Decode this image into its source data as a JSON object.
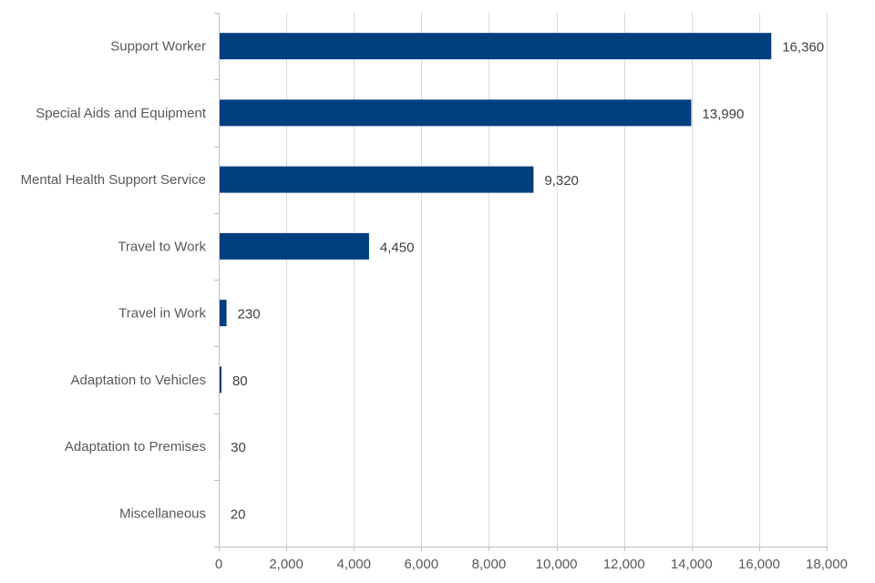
{
  "chart_data": {
    "type": "bar",
    "orientation": "horizontal",
    "title": "",
    "xlabel": "",
    "ylabel": "",
    "categories": [
      "Support Worker",
      "Special Aids and Equipment",
      "Mental Health Support Service",
      "Travel to Work",
      "Travel in Work",
      "Adaptation to Vehicles",
      "Adaptation to Premises",
      "Miscellaneous"
    ],
    "values": [
      16360,
      13990,
      9320,
      4450,
      230,
      80,
      30,
      20
    ],
    "data_labels": [
      "16,360",
      "13,990",
      "9,320",
      "4,450",
      "230",
      "80",
      "30",
      "20"
    ],
    "xlim": [
      0,
      18000
    ],
    "x_ticks": [
      0,
      2000,
      4000,
      6000,
      8000,
      10000,
      12000,
      14000,
      16000,
      18000
    ],
    "x_tick_labels": [
      "0",
      "2,000",
      "4,000",
      "6,000",
      "8,000",
      "10,000",
      "12,000",
      "14,000",
      "16,000",
      "18,000"
    ],
    "grid": "vertical",
    "legend": "none",
    "bar_color": "#003f7d"
  }
}
